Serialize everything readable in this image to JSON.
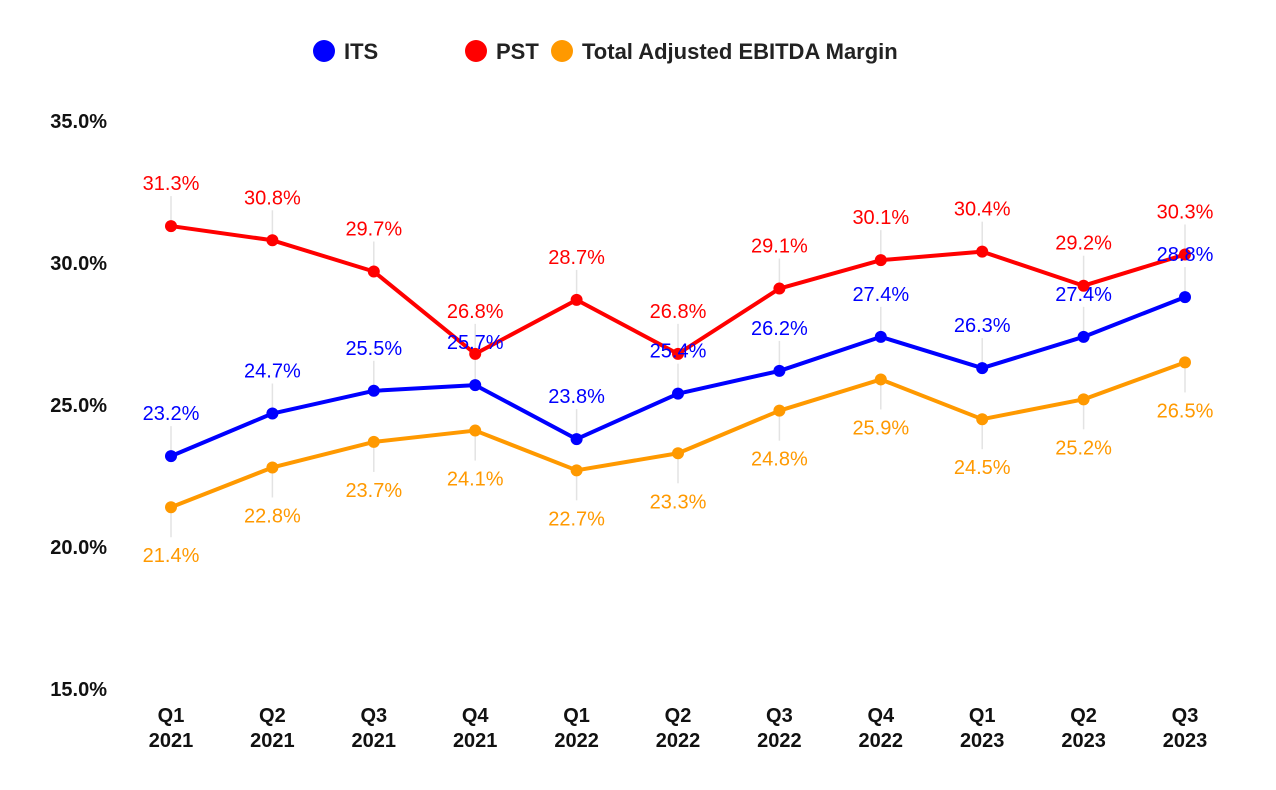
{
  "chart_data": {
    "type": "line",
    "title": "",
    "xlabel": "",
    "ylabel": "",
    "ylim": [
      15,
      35
    ],
    "yticks": [
      "15.0%",
      "20.0%",
      "25.0%",
      "30.0%",
      "35.0%"
    ],
    "ytick_values": [
      15,
      20,
      25,
      30,
      35
    ],
    "grid": false,
    "legend_position": "top",
    "categories": [
      [
        "Q1",
        "2021"
      ],
      [
        "Q2",
        "2021"
      ],
      [
        "Q3",
        "2021"
      ],
      [
        "Q4",
        "2021"
      ],
      [
        "Q1",
        "2022"
      ],
      [
        "Q2",
        "2022"
      ],
      [
        "Q3",
        "2022"
      ],
      [
        "Q4",
        "2022"
      ],
      [
        "Q1",
        "2023"
      ],
      [
        "Q2",
        "2023"
      ],
      [
        "Q3",
        "2023"
      ]
    ],
    "series": [
      {
        "name": "ITS",
        "color": "#0000ff",
        "label_position": "above",
        "values": [
          23.2,
          24.7,
          25.5,
          25.7,
          23.8,
          25.4,
          26.2,
          27.4,
          26.3,
          27.4,
          28.8
        ]
      },
      {
        "name": "PST",
        "color": "#ff0000",
        "label_position": "above",
        "values": [
          31.3,
          30.8,
          29.7,
          26.8,
          28.7,
          26.8,
          29.1,
          30.1,
          30.4,
          29.2,
          30.3
        ]
      },
      {
        "name": "Total Adjusted EBITDA Margin",
        "color": "#ff9900",
        "label_position": "below",
        "values": [
          21.4,
          22.8,
          23.7,
          24.1,
          22.7,
          23.3,
          24.8,
          25.9,
          24.5,
          25.2,
          26.5
        ]
      }
    ],
    "value_suffix": "%"
  }
}
